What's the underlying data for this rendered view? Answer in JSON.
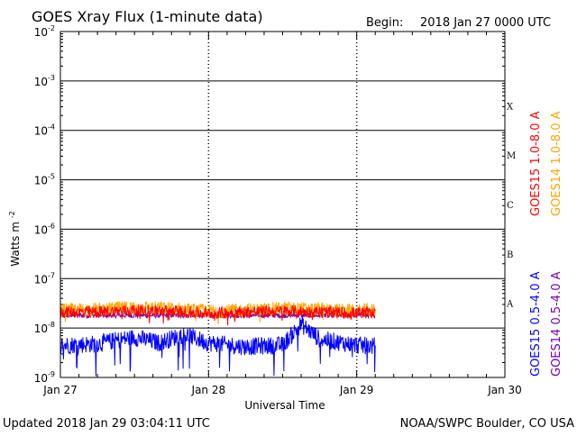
{
  "header": {
    "title": "GOES Xray Flux (1-minute data)",
    "begin_label": "Begin:",
    "begin_value": "2018 Jan 27 0000 UTC"
  },
  "footer": {
    "updated": "Updated 2018 Jan 29 03:04:11 UTC",
    "source": "NOAA/SWPC Boulder, CO USA"
  },
  "chart_data": {
    "type": "line",
    "xlabel": "Universal Time",
    "ylabel": "Watts m",
    "ylabel_sup": "-2",
    "yscale": "log",
    "ylim": [
      1e-09,
      0.01
    ],
    "xlim": [
      "2018-01-27 00:00",
      "2018-01-30 00:00"
    ],
    "x_ticks": [
      "Jan 27",
      "Jan 28",
      "Jan 29",
      "Jan 30"
    ],
    "y_ticks": [
      {
        "base": "10",
        "exp": "-9"
      },
      {
        "base": "10",
        "exp": "-8"
      },
      {
        "base": "10",
        "exp": "-7"
      },
      {
        "base": "10",
        "exp": "-6"
      },
      {
        "base": "10",
        "exp": "-5"
      },
      {
        "base": "10",
        "exp": "-4"
      },
      {
        "base": "10",
        "exp": "-3"
      },
      {
        "base": "10",
        "exp": "-2"
      }
    ],
    "flare_classes": [
      {
        "label": "A",
        "low": 1e-08
      },
      {
        "label": "B",
        "low": 1e-07
      },
      {
        "label": "C",
        "low": 1e-06
      },
      {
        "label": "M",
        "low": 1e-05
      },
      {
        "label": "X",
        "low": 0.0001
      }
    ],
    "grid": true,
    "legend_placement": "right",
    "series": [
      {
        "name": "GOES15 1.0-8.0 A",
        "color": "#ff0000",
        "x": [
          "2018-01-27 00:00",
          "2018-01-27 06:00",
          "2018-01-27 12:00",
          "2018-01-27 18:00",
          "2018-01-28 00:00",
          "2018-01-28 06:00",
          "2018-01-28 12:00",
          "2018-01-28 18:00",
          "2018-01-29 00:00",
          "2018-01-29 03:00"
        ],
        "y": [
          2.1e-08,
          2.1e-08,
          2.3e-08,
          2.2e-08,
          2e-08,
          2.1e-08,
          2.2e-08,
          2.1e-08,
          2e-08,
          2.1e-08
        ]
      },
      {
        "name": "GOES14 1.0-8.0 A",
        "color": "#ffa500",
        "x": [
          "2018-01-27 00:00",
          "2018-01-27 06:00",
          "2018-01-27 12:00",
          "2018-01-27 18:00",
          "2018-01-28 00:00",
          "2018-01-28 06:00",
          "2018-01-28 12:00",
          "2018-01-28 18:00",
          "2018-01-29 00:00",
          "2018-01-29 03:00"
        ],
        "y": [
          2.3e-08,
          2.4e-08,
          2.6e-08,
          2.5e-08,
          2.2e-08,
          2.3e-08,
          2.5e-08,
          2.4e-08,
          2.2e-08,
          2.3e-08
        ]
      },
      {
        "name": "GOES15 0.5-4.0 A",
        "color": "#0000ff",
        "x": [
          "2018-01-27 00:00",
          "2018-01-27 06:00",
          "2018-01-27 12:00",
          "2018-01-27 16:00",
          "2018-01-27 20:00",
          "2018-01-28 00:00",
          "2018-01-28 06:00",
          "2018-01-28 12:00",
          "2018-01-28 15:00",
          "2018-01-28 18:00",
          "2018-01-29 00:00",
          "2018-01-29 03:00"
        ],
        "y": [
          4.5e-09,
          4.8e-09,
          6.5e-09,
          5e-09,
          7.5e-09,
          5e-09,
          4.2e-09,
          4.5e-09,
          1.2e-08,
          6e-09,
          4.5e-09,
          4.3e-09
        ]
      },
      {
        "name": "GOES14 0.5-4.0 A",
        "color": "#7700aa",
        "x": [
          "2018-01-27 00:00",
          "2018-01-29 03:00"
        ],
        "y": [
          1.8e-08,
          1.8e-08
        ]
      }
    ]
  }
}
